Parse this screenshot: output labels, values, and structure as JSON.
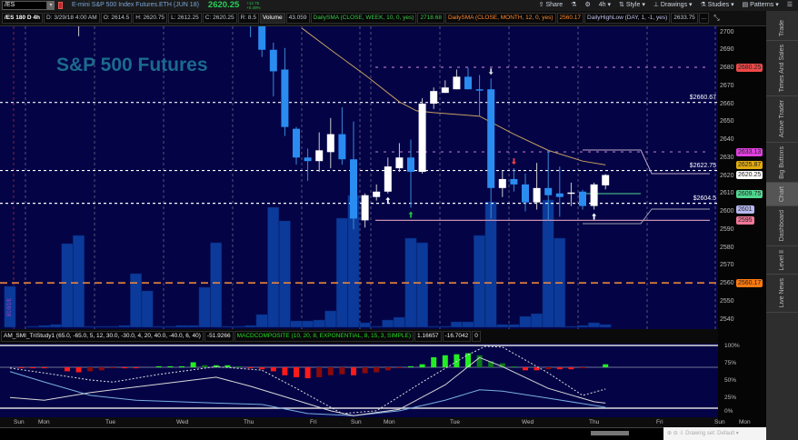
{
  "toolbar": {
    "symbol": "/ES",
    "instrument_title": "E-mini S&P 500 Index Futures.ETH (JUN 18)",
    "last_price": "2620.25",
    "change": "+12.75",
    "change_pct": "+0.49%",
    "share": "Share",
    "timeframe": "4h",
    "style": "Style",
    "drawings": "Drawings",
    "studies": "Studies",
    "patterns": "Patterns"
  },
  "infobar": {
    "chart_id": "/ES 180 D 4h",
    "date": "D: 3/29/18 4:00 AM",
    "open": "O: 2614.5",
    "high": "H: 2620.75",
    "low": "L: 2612.25",
    "close": "C: 2620.25",
    "range": "R: 8.5",
    "volume_label": "Volume",
    "volume": "43.059",
    "sma_week_label": "DailySMA (CLOSE, WEEK, 10, 0, yes)",
    "sma_week": "2718.68",
    "sma_month_label": "DailySMA (CLOSE, MONTH, 12, 0, yes)",
    "sma_month": "2560.17",
    "highlow_label": "DailyHighLow (DAY, 1, -1, yes)",
    "highlow": "2633.75",
    "more": "..."
  },
  "watermark": "S&P 500 Futures",
  "volume_date_label": "3/16/18",
  "right_tabs": [
    "Trade",
    "Times And Sales",
    "Active Trader",
    "Big Buttons",
    "Chart",
    "Dashboard",
    "Level II",
    "Live News"
  ],
  "active_tab": "Chart",
  "lower_header": {
    "smi_label": "AM_SMI_TriStudy1 (65.0, -65.0, 5, 12, 30.0, -30.0, 4, 20, 40.0, -40.0, 6, 40)",
    "smi_value": "-51.9266",
    "macd_label": "MACDCOMPOSITE (10, 20, 8, EXPONENTIAL, 8, 15, 3, SIMPLE)",
    "macd_value1": "1.16657",
    "macd_value2": "-16.7042",
    "macd_value3": "0"
  },
  "bottom_bar": {
    "drawing_set": "Drawing set: Default"
  },
  "colors": {
    "background": "#030346",
    "up_candle": "#ffffff",
    "down_candle": "#2a8cf0",
    "volume": "#0b3a9a",
    "sma_week": "#c8a060",
    "sma_month": "#ff8a30",
    "macd_up": "#22ee22",
    "macd_down": "#ff1a1a"
  },
  "chart_data": [
    {
      "type": "candlestick",
      "ylim": [
        2535,
        2703
      ],
      "y_ticks": [
        "2700",
        "2690",
        "2680",
        "2670",
        "2660",
        "2650",
        "2640",
        "2630",
        "2620",
        "2610",
        "2600",
        "2590",
        "2580",
        "2570",
        "2560",
        "2550",
        "2540"
      ],
      "x_ticks": [
        "Sun",
        "Mon",
        "Tue",
        "Wed",
        "Thu",
        "Fri",
        "Sun",
        "Mon",
        "Tue",
        "Wed",
        "Thu",
        "Fri",
        "Sun",
        "Mon"
      ],
      "candles": [
        {
          "bar": 6,
          "o": 2712,
          "h": 2720,
          "l": 2697.5,
          "c": 2715
        },
        {
          "bar": 21,
          "o": 2710,
          "h": 2715,
          "l": 2697,
          "c": 2706
        },
        {
          "bar": 22,
          "o": 2705,
          "h": 2706,
          "l": 2686,
          "c": 2690
        },
        {
          "bar": 23,
          "o": 2690,
          "h": 2694,
          "l": 2664,
          "c": 2678
        },
        {
          "bar": 24,
          "o": 2679,
          "h": 2691,
          "l": 2642,
          "c": 2647
        },
        {
          "bar": 25,
          "o": 2646,
          "h": 2647,
          "l": 2626,
          "c": 2630
        },
        {
          "bar": 26,
          "o": 2630,
          "h": 2635,
          "l": 2617,
          "c": 2628
        },
        {
          "bar": 27,
          "o": 2628,
          "h": 2644,
          "l": 2622,
          "c": 2634
        },
        {
          "bar": 28,
          "o": 2633,
          "h": 2652,
          "l": 2624,
          "c": 2643
        },
        {
          "bar": 29,
          "o": 2643,
          "h": 2658,
          "l": 2626,
          "c": 2629
        },
        {
          "bar": 30,
          "o": 2629,
          "h": 2650,
          "l": 2590,
          "c": 2596
        },
        {
          "bar": 31,
          "o": 2595,
          "h": 2610,
          "l": 2591,
          "c": 2609
        },
        {
          "bar": 32,
          "o": 2608,
          "h": 2615,
          "l": 2606,
          "c": 2611
        },
        {
          "bar": 33,
          "o": 2611,
          "h": 2630,
          "l": 2610,
          "c": 2625
        },
        {
          "bar": 34,
          "o": 2624,
          "h": 2638,
          "l": 2622,
          "c": 2630
        },
        {
          "bar": 35,
          "o": 2630,
          "h": 2640,
          "l": 2602,
          "c": 2622
        },
        {
          "bar": 36,
          "o": 2622,
          "h": 2663,
          "l": 2621,
          "c": 2660
        },
        {
          "bar": 37,
          "o": 2660,
          "h": 2669,
          "l": 2657,
          "c": 2667
        },
        {
          "bar": 38,
          "o": 2666,
          "h": 2673,
          "l": 2666,
          "c": 2669
        },
        {
          "bar": 39,
          "o": 2668,
          "h": 2679,
          "l": 2668,
          "c": 2675
        },
        {
          "bar": 40,
          "o": 2675,
          "h": 2680,
          "l": 2668,
          "c": 2668
        },
        {
          "bar": 41,
          "o": 2668,
          "h": 2676,
          "l": 2653,
          "c": 2667.5
        },
        {
          "bar": 42,
          "o": 2668,
          "h": 2674,
          "l": 2596,
          "c": 2613
        },
        {
          "bar": 43,
          "o": 2613,
          "h": 2623,
          "l": 2608,
          "c": 2618
        },
        {
          "bar": 44,
          "o": 2618,
          "h": 2624,
          "l": 2611,
          "c": 2615
        },
        {
          "bar": 45,
          "o": 2615,
          "h": 2621,
          "l": 2600,
          "c": 2605
        },
        {
          "bar": 46,
          "o": 2605,
          "h": 2627,
          "l": 2601,
          "c": 2613
        },
        {
          "bar": 47,
          "o": 2613,
          "h": 2634,
          "l": 2595,
          "c": 2609
        },
        {
          "bar": 48,
          "o": 2610,
          "h": 2625,
          "l": 2597,
          "c": 2608
        },
        {
          "bar": 49,
          "o": 2610,
          "h": 2616,
          "l": 2603,
          "c": 2610.5
        },
        {
          "bar": 50,
          "o": 2611,
          "h": 2612,
          "l": 2601,
          "c": 2603
        },
        {
          "bar": 51,
          "o": 2603,
          "h": 2616,
          "l": 2601,
          "c": 2615
        },
        {
          "bar": 52,
          "o": 2614.5,
          "h": 2620.75,
          "l": 2612.25,
          "c": 2620.25
        }
      ],
      "volume": [
        45,
        0,
        1,
        2,
        3,
        92,
        101,
        1,
        1,
        1,
        2,
        59,
        40,
        1,
        1,
        2,
        2,
        44,
        93,
        1,
        1,
        2,
        14,
        132,
        117,
        7,
        7,
        8,
        18,
        120,
        145,
        5,
        1,
        8,
        11,
        98,
        93,
        1,
        1,
        6,
        6,
        101,
        138,
        3,
        3,
        12,
        15,
        140,
        98,
        1,
        2,
        5,
        3
      ],
      "sma_week_line": [
        {
          "bar": 25.5,
          "v": 2702
        },
        {
          "bar": 28,
          "v": 2690
        },
        {
          "bar": 31,
          "v": 2676
        },
        {
          "bar": 34,
          "v": 2661
        },
        {
          "bar": 35.5,
          "v": 2656
        },
        {
          "bar": 37,
          "v": 2655
        },
        {
          "bar": 41,
          "v": 2653
        },
        {
          "bar": 44,
          "v": 2643
        },
        {
          "bar": 47,
          "v": 2634
        },
        {
          "bar": 50,
          "v": 2628
        },
        {
          "bar": 52,
          "v": 2625.87
        }
      ],
      "levels": [
        {
          "label": "$2660.67",
          "value": 2660.67,
          "style": "dashed",
          "color": "#ffffff"
        },
        {
          "label": "$2622.75",
          "value": 2622.75,
          "style": "dashed",
          "color": "#ffffff"
        },
        {
          "label": "$2604.5",
          "value": 2604.5,
          "style": "dashed",
          "color": "#ffffff"
        },
        {
          "label": "",
          "value": 2680.25,
          "style": "dashed-partial",
          "color": "#b070c0"
        },
        {
          "label": "",
          "value": 2633.13,
          "style": "dashed-partial",
          "color": "#b070c0"
        },
        {
          "label": "",
          "value": 2560.17,
          "style": "dashed-long",
          "color": "#e8843a"
        },
        {
          "label": "",
          "value": 2595,
          "style": "solid-partial",
          "color": "#c890b0"
        }
      ],
      "price_tags": [
        {
          "value": "2680.25",
          "color": "#f04848"
        },
        {
          "value": "2633.13",
          "color": "#e040e0"
        },
        {
          "value": "2625.87",
          "color": "#e0aa10"
        },
        {
          "value": "2620.25",
          "color": "#ffffff"
        },
        {
          "value": "2609.75",
          "color": "#50d890"
        },
        {
          "value": "2601",
          "color": "#b8b8f0"
        },
        {
          "value": "2595",
          "color": "#f07898"
        },
        {
          "value": "2560.17",
          "color": "#ff7a10"
        }
      ],
      "signals": [
        {
          "bar": 33,
          "dir": "up",
          "color": "#ffffff"
        },
        {
          "bar": 35,
          "dir": "up",
          "color": "#22c040"
        },
        {
          "bar": 42,
          "dir": "down",
          "color": "#dddddd"
        },
        {
          "bar": 44,
          "dir": "down",
          "color": "#ff4040"
        },
        {
          "bar": 51,
          "dir": "up",
          "color": "#ffffff"
        }
      ]
    },
    {
      "type": "oscillator",
      "y_ticks": [
        "100%",
        "75%",
        "50%",
        "25%",
        "0%"
      ],
      "ylim": [
        0,
        100
      ],
      "macd_histogram": [
        0,
        -1,
        -1,
        -1,
        0,
        -4,
        -5,
        -4,
        -3,
        -1,
        -1,
        -1,
        0,
        1,
        1,
        1,
        5,
        2,
        2,
        2,
        1,
        -1,
        -2,
        -4,
        -8,
        -10,
        -11,
        -10,
        -8,
        -7,
        -8,
        -6,
        -5,
        -3,
        -1,
        1,
        3,
        10,
        12,
        13,
        14,
        12,
        6,
        4,
        1,
        -3,
        -3,
        -2,
        -2,
        -2,
        -1,
        0,
        3
      ],
      "smi_line": [
        {
          "bar": 0,
          "v": 27
        },
        {
          "bar": 3,
          "v": 23
        },
        {
          "bar": 7,
          "v": 34
        },
        {
          "bar": 12,
          "v": 44
        },
        {
          "bar": 16,
          "v": 52
        },
        {
          "bar": 18,
          "v": 56
        },
        {
          "bar": 21,
          "v": 43
        },
        {
          "bar": 25,
          "v": 23
        },
        {
          "bar": 28,
          "v": 8
        },
        {
          "bar": 30,
          "v": 1
        },
        {
          "bar": 34,
          "v": 10
        },
        {
          "bar": 38,
          "v": 45
        },
        {
          "bar": 41,
          "v": 84
        },
        {
          "bar": 43,
          "v": 71
        },
        {
          "bar": 47,
          "v": 40
        },
        {
          "bar": 51,
          "v": 21
        },
        {
          "bar": 52,
          "v": 19
        }
      ],
      "smi_signal_line": [
        {
          "bar": 0,
          "v": 69
        },
        {
          "bar": 3,
          "v": 62
        },
        {
          "bar": 7,
          "v": 52
        },
        {
          "bar": 9,
          "v": 49
        },
        {
          "bar": 13,
          "v": 60
        },
        {
          "bar": 18,
          "v": 71
        },
        {
          "bar": 22,
          "v": 66
        },
        {
          "bar": 25,
          "v": 40
        },
        {
          "bar": 29,
          "v": 4
        },
        {
          "bar": 32,
          "v": 8
        },
        {
          "bar": 36,
          "v": 49
        },
        {
          "bar": 40,
          "v": 88
        },
        {
          "bar": 41.5,
          "v": 100
        },
        {
          "bar": 43,
          "v": 99
        },
        {
          "bar": 47,
          "v": 62
        },
        {
          "bar": 50,
          "v": 30
        },
        {
          "bar": 52,
          "v": 39
        }
      ],
      "smi_slow_line": [
        {
          "bar": 0,
          "v": 64
        },
        {
          "bar": 3,
          "v": 49
        },
        {
          "bar": 7,
          "v": 30
        },
        {
          "bar": 11,
          "v": 23
        },
        {
          "bar": 18,
          "v": 19
        },
        {
          "bar": 22,
          "v": 17
        },
        {
          "bar": 26,
          "v": 4
        },
        {
          "bar": 30,
          "v": 1
        },
        {
          "bar": 34,
          "v": 8
        },
        {
          "bar": 38,
          "v": 23
        },
        {
          "bar": 41,
          "v": 38
        },
        {
          "bar": 43,
          "v": 36
        },
        {
          "bar": 47,
          "v": 26
        },
        {
          "bar": 52,
          "v": 13
        }
      ]
    }
  ]
}
